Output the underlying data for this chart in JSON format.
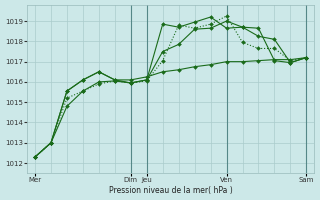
{
  "background_color": "#cce8e8",
  "grid_color": "#aacccc",
  "line_color": "#1a6b1a",
  "marker_color": "#1a6b1a",
  "xlabel": "Pression niveau de la mer( hPa )",
  "ylim": [
    1011.5,
    1019.8
  ],
  "yticks": [
    1012,
    1013,
    1014,
    1015,
    1016,
    1017,
    1018,
    1019
  ],
  "xtick_labels": [
    "Mer",
    "Dim",
    "Jeu",
    "Ven",
    "Sam"
  ],
  "xtick_positions": [
    0,
    6,
    7,
    12,
    17
  ],
  "vlines": [
    6,
    7,
    12,
    17
  ],
  "series1_x": [
    0,
    1,
    2,
    3,
    4,
    5,
    6,
    7,
    8,
    9,
    10,
    11,
    12,
    13,
    14,
    15,
    16,
    17
  ],
  "series1": [
    1012.3,
    1013.0,
    1014.8,
    1015.55,
    1016.0,
    1016.05,
    1015.95,
    1016.1,
    1017.5,
    1017.85,
    1018.6,
    1018.65,
    1019.0,
    1018.7,
    1018.65,
    1017.05,
    1016.95,
    1017.2
  ],
  "series2_x": [
    0,
    1,
    2,
    3,
    4,
    5,
    6,
    7,
    8,
    9,
    10,
    11,
    12,
    13,
    14,
    15,
    16,
    17
  ],
  "series2": [
    1012.3,
    1013.0,
    1015.2,
    1015.55,
    1015.9,
    1016.05,
    1015.95,
    1016.05,
    1017.05,
    1018.8,
    1018.65,
    1018.85,
    1019.25,
    1017.95,
    1017.65,
    1017.65,
    1017.05,
    1017.2
  ],
  "series3_x": [
    0,
    1,
    2,
    3,
    4,
    5,
    6,
    7,
    8,
    9,
    10,
    11,
    12,
    13,
    14,
    15,
    16,
    17
  ],
  "series3": [
    1012.3,
    1013.0,
    1015.55,
    1016.1,
    1016.5,
    1016.1,
    1015.95,
    1016.1,
    1018.85,
    1018.7,
    1018.95,
    1019.2,
    1018.65,
    1018.7,
    1018.25,
    1018.1,
    1016.95,
    1017.2
  ],
  "series4_x": [
    0,
    1,
    2,
    3,
    4,
    5,
    6,
    7,
    8,
    9,
    10,
    11,
    12,
    13,
    14,
    15,
    16,
    17
  ],
  "series4": [
    1012.3,
    1013.0,
    1015.55,
    1016.1,
    1016.5,
    1016.1,
    1016.1,
    1016.25,
    1016.5,
    1016.6,
    1016.75,
    1016.85,
    1017.0,
    1017.0,
    1017.05,
    1017.1,
    1017.1,
    1017.2
  ],
  "n_points": 18
}
